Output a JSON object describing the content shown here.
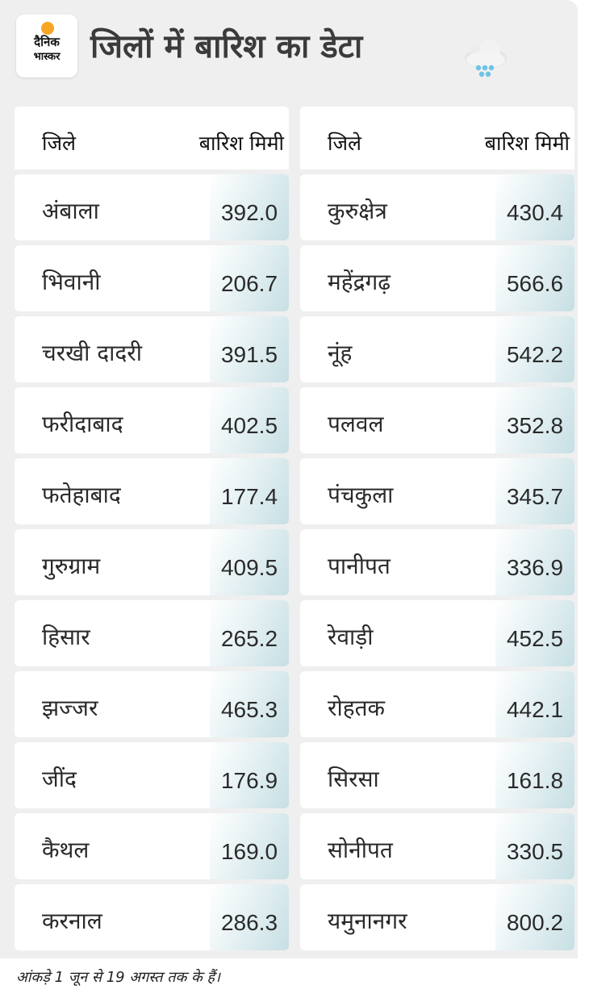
{
  "brand": {
    "line1": "दैनिक",
    "line2": "भास्कर",
    "accent": "#f5a623"
  },
  "title": "जिलों में बारिश का डेटा",
  "icons": {
    "header_icon": "rain-cloud-icon"
  },
  "colors": {
    "background": "#efefef",
    "card": "#ffffff",
    "value_tint": "#c6dfe4"
  },
  "chart_data": {
    "type": "table",
    "columns": [
      "जिले",
      "बारिश मिमी"
    ],
    "left_table": [
      {
        "district": "अंबाला",
        "rain": "392.0"
      },
      {
        "district": "भिवानी",
        "rain": "206.7"
      },
      {
        "district": "चरखी दादरी",
        "rain": "391.5"
      },
      {
        "district": "फरीदाबाद",
        "rain": "402.5"
      },
      {
        "district": "फतेहाबाद",
        "rain": "177.4"
      },
      {
        "district": "गुरुग्राम",
        "rain": "409.5"
      },
      {
        "district": "हिसार",
        "rain": "265.2"
      },
      {
        "district": "झज्जर",
        "rain": "465.3"
      },
      {
        "district": "जींद",
        "rain": "176.9"
      },
      {
        "district": "कैथल",
        "rain": "169.0"
      },
      {
        "district": "करनाल",
        "rain": "286.3"
      }
    ],
    "right_table": [
      {
        "district": "कुरुक्षेत्र",
        "rain": "430.4"
      },
      {
        "district": "महेंद्रगढ़",
        "rain": "566.6"
      },
      {
        "district": "नूंह",
        "rain": "542.2"
      },
      {
        "district": "पलवल",
        "rain": "352.8"
      },
      {
        "district": "पंचकुला",
        "rain": "345.7"
      },
      {
        "district": "पानीपत",
        "rain": "336.9"
      },
      {
        "district": "रेवाड़ी",
        "rain": "452.5"
      },
      {
        "district": "रोहतक",
        "rain": "442.1"
      },
      {
        "district": "सिरसा",
        "rain": "161.8"
      },
      {
        "district": "सोनीपत",
        "rain": "330.5"
      },
      {
        "district": "यमुनानगर",
        "rain": "800.2"
      }
    ]
  },
  "footnote": "आंकड़े 1 जून से 19 अगस्त तक के हैं।"
}
